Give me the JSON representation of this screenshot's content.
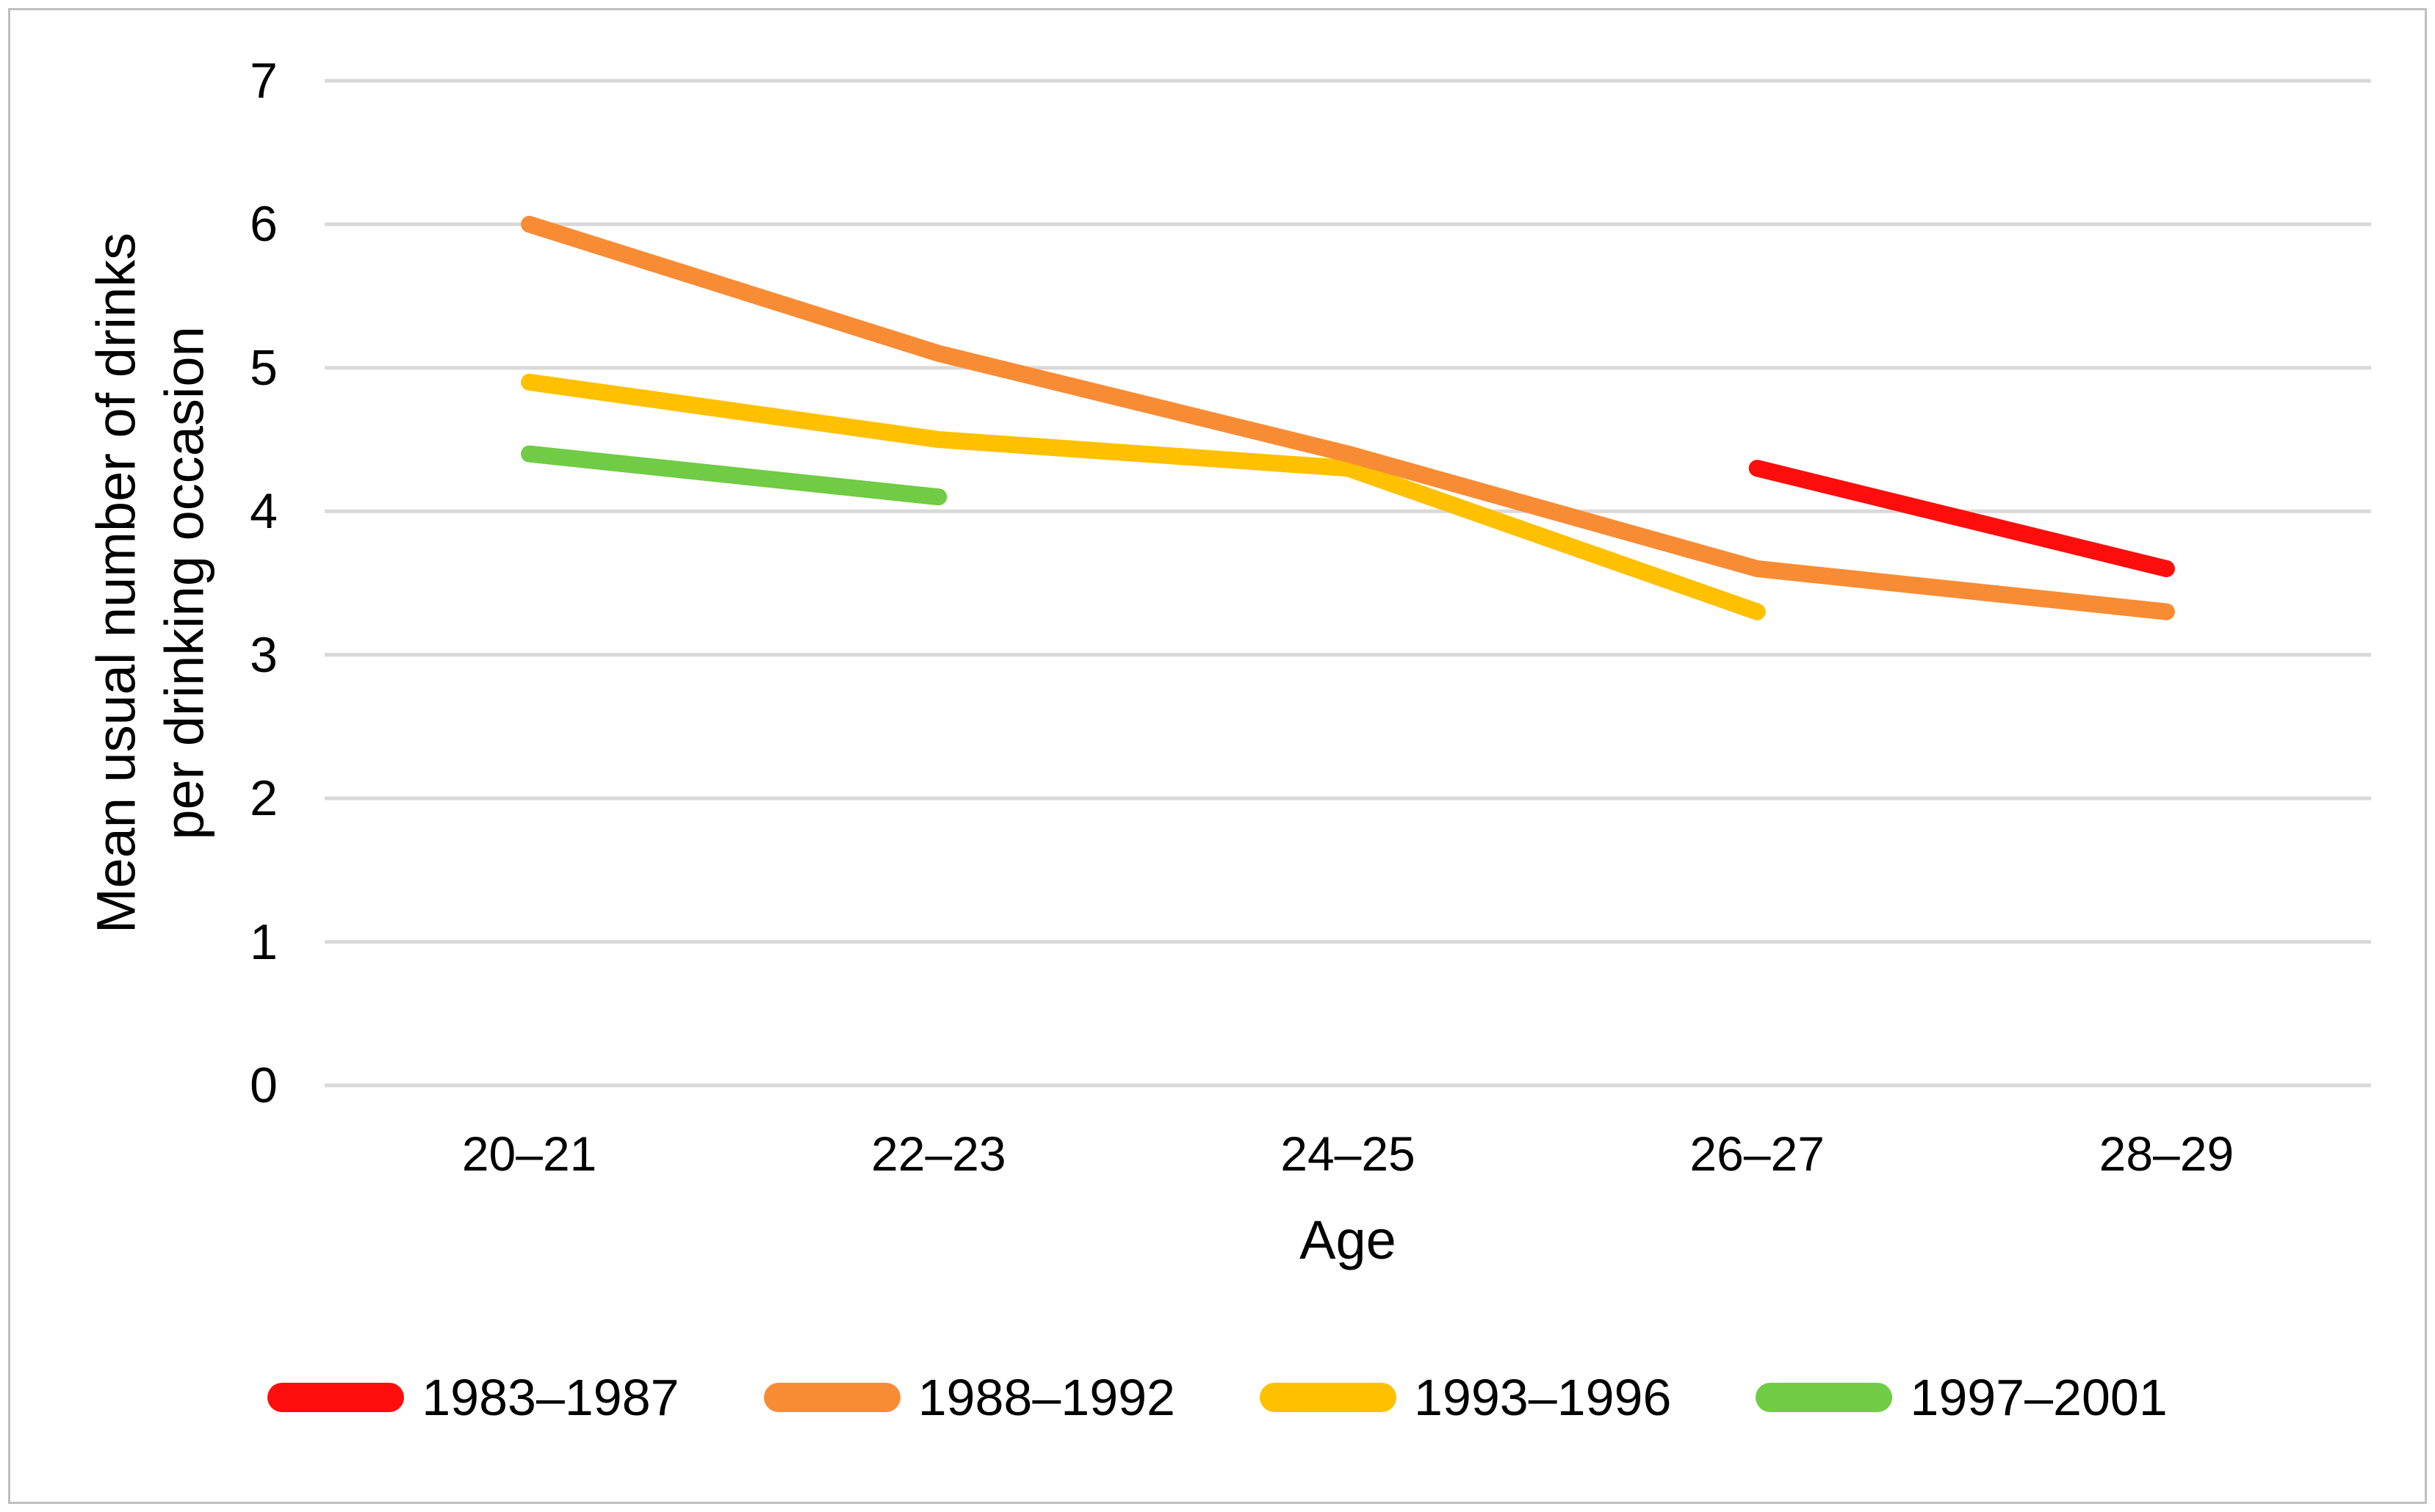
{
  "chart_data": {
    "type": "line",
    "title": "",
    "xlabel": "Age",
    "ylabel": "Mean usual number of drinks per drinking occasion",
    "ylabel_lines": [
      "Mean usual number of drinks",
      "per drinking occasion"
    ],
    "categories": [
      "20–21",
      "22–23",
      "24–25",
      "26–27",
      "28–29"
    ],
    "y_ticks": [
      0,
      1,
      2,
      3,
      4,
      5,
      6,
      7
    ],
    "ylim": [
      0,
      7
    ],
    "grid": "horizontal-only",
    "gridline_color": "#D9D9D9",
    "frame_color": "#BFBFBF",
    "legend_position": "bottom",
    "series": [
      {
        "name": "1983–1987",
        "color": "#FE0D0D",
        "values": [
          null,
          null,
          null,
          4.3,
          3.6
        ]
      },
      {
        "name": "1988–1992",
        "color": "#F88C35",
        "values": [
          6.0,
          5.1,
          4.4,
          3.6,
          3.3
        ]
      },
      {
        "name": "1993–1996",
        "color": "#FFC000",
        "values": [
          4.9,
          4.5,
          4.3,
          3.3,
          null
        ]
      },
      {
        "name": "1997–2001",
        "color": "#6FCC44",
        "values": [
          4.4,
          4.1,
          null,
          null,
          null
        ]
      }
    ]
  }
}
